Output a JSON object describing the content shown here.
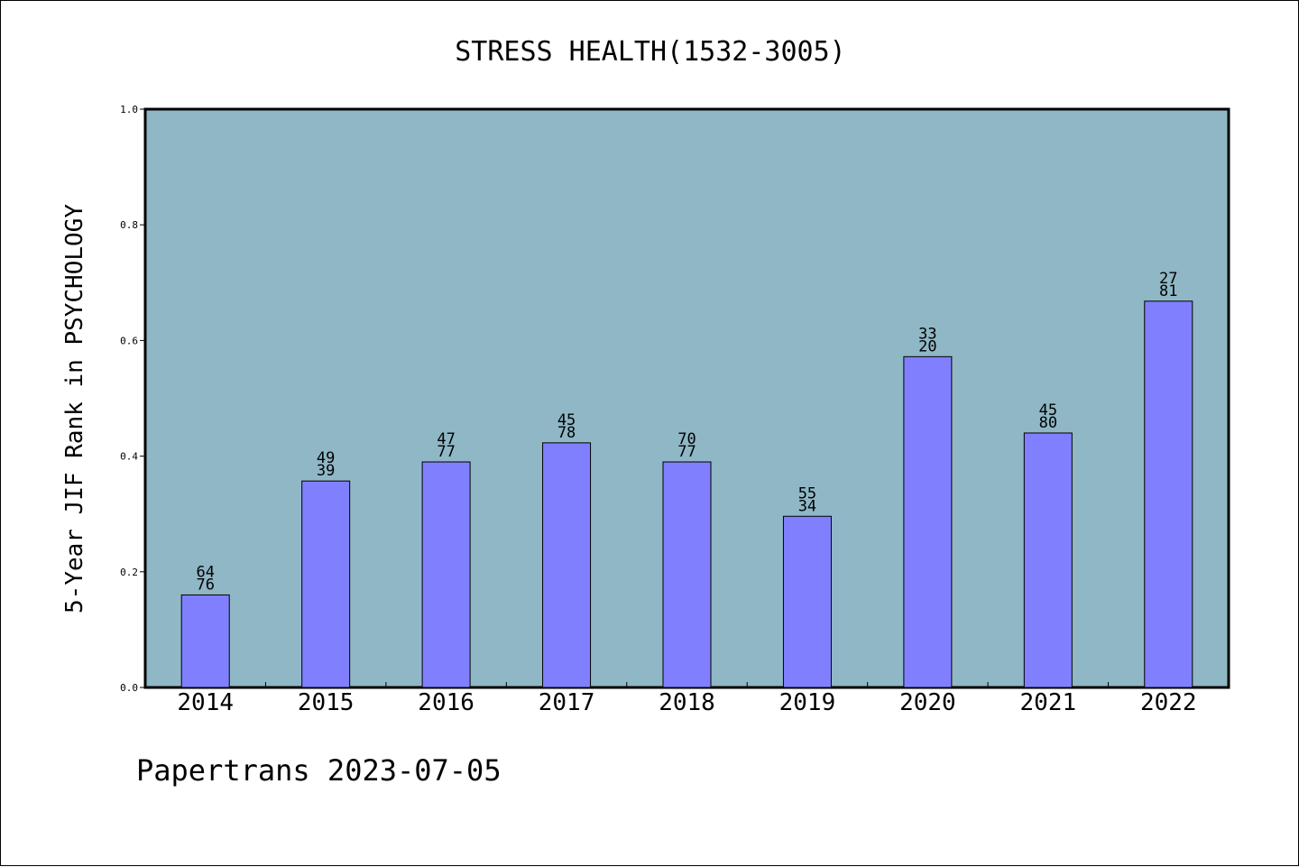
{
  "chart_data": {
    "type": "bar",
    "title": "STRESS HEALTH(1532-3005)",
    "ylabel": "5-Year JIF Rank in PSYCHOLOGY",
    "xlabel": "",
    "ylim": [
      0,
      1.0
    ],
    "yticks": [
      "0.0",
      "0.2",
      "0.4",
      "0.6",
      "0.8",
      "1.0"
    ],
    "ytick_values": [
      0.0,
      0.2,
      0.4,
      0.6,
      0.8,
      1.0
    ],
    "categories": [
      "2014",
      "2015",
      "2016",
      "2017",
      "2018",
      "2019",
      "2020",
      "2021",
      "2022"
    ],
    "values": [
      0.16,
      0.357,
      0.39,
      0.423,
      0.39,
      0.296,
      0.572,
      0.44,
      0.668
    ],
    "labels": [
      [
        "64",
        "76"
      ],
      [
        "49",
        "39"
      ],
      [
        "47",
        "77"
      ],
      [
        "45",
        "78"
      ],
      [
        "70",
        "77"
      ],
      [
        "55",
        "34"
      ],
      [
        "33",
        "20"
      ],
      [
        "45",
        "80"
      ],
      [
        "27",
        "81"
      ]
    ],
    "grid": false,
    "colors": {
      "plot_background": "#8fb7c6",
      "bar_fill": "#8080ff",
      "bar_edge": "#000000"
    }
  },
  "footer": "Papertrans 2023-07-05"
}
